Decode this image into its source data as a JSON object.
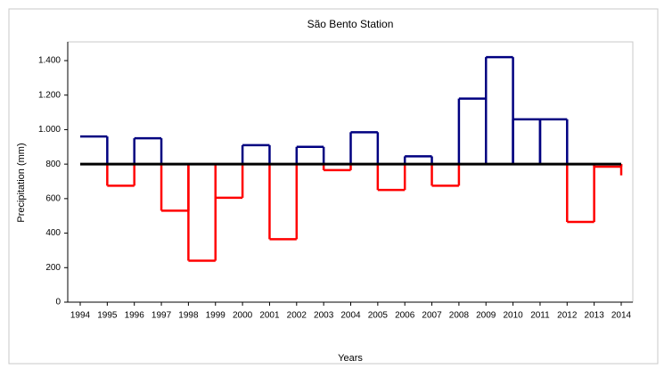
{
  "chart_data": {
    "type": "step",
    "title": "São Bento Station",
    "xlabel": "Years",
    "ylabel": "Precipitation (mm)",
    "categories": [
      "1994",
      "1995",
      "1996",
      "1997",
      "1998",
      "1999",
      "2000",
      "2001",
      "2002",
      "2003",
      "2004",
      "2005",
      "2006",
      "2007",
      "2008",
      "2009",
      "2010",
      "2011",
      "2012",
      "2013",
      "2014"
    ],
    "values": [
      960,
      675,
      950,
      530,
      240,
      605,
      910,
      365,
      900,
      765,
      985,
      650,
      845,
      675,
      1180,
      1420,
      1060,
      1060,
      465,
      785,
      735
    ],
    "mean": 800,
    "above_color": "#000080",
    "below_color": "#ff0000",
    "mean_color": "#000000",
    "ylim": [
      0,
      1400
    ],
    "yticks": [
      0,
      200,
      400,
      600,
      800,
      {
        "value": 1000,
        "label": "1.000"
      },
      {
        "value": 1200,
        "label": "1.200"
      },
      {
        "value": 1400,
        "label": "1.400"
      }
    ]
  }
}
